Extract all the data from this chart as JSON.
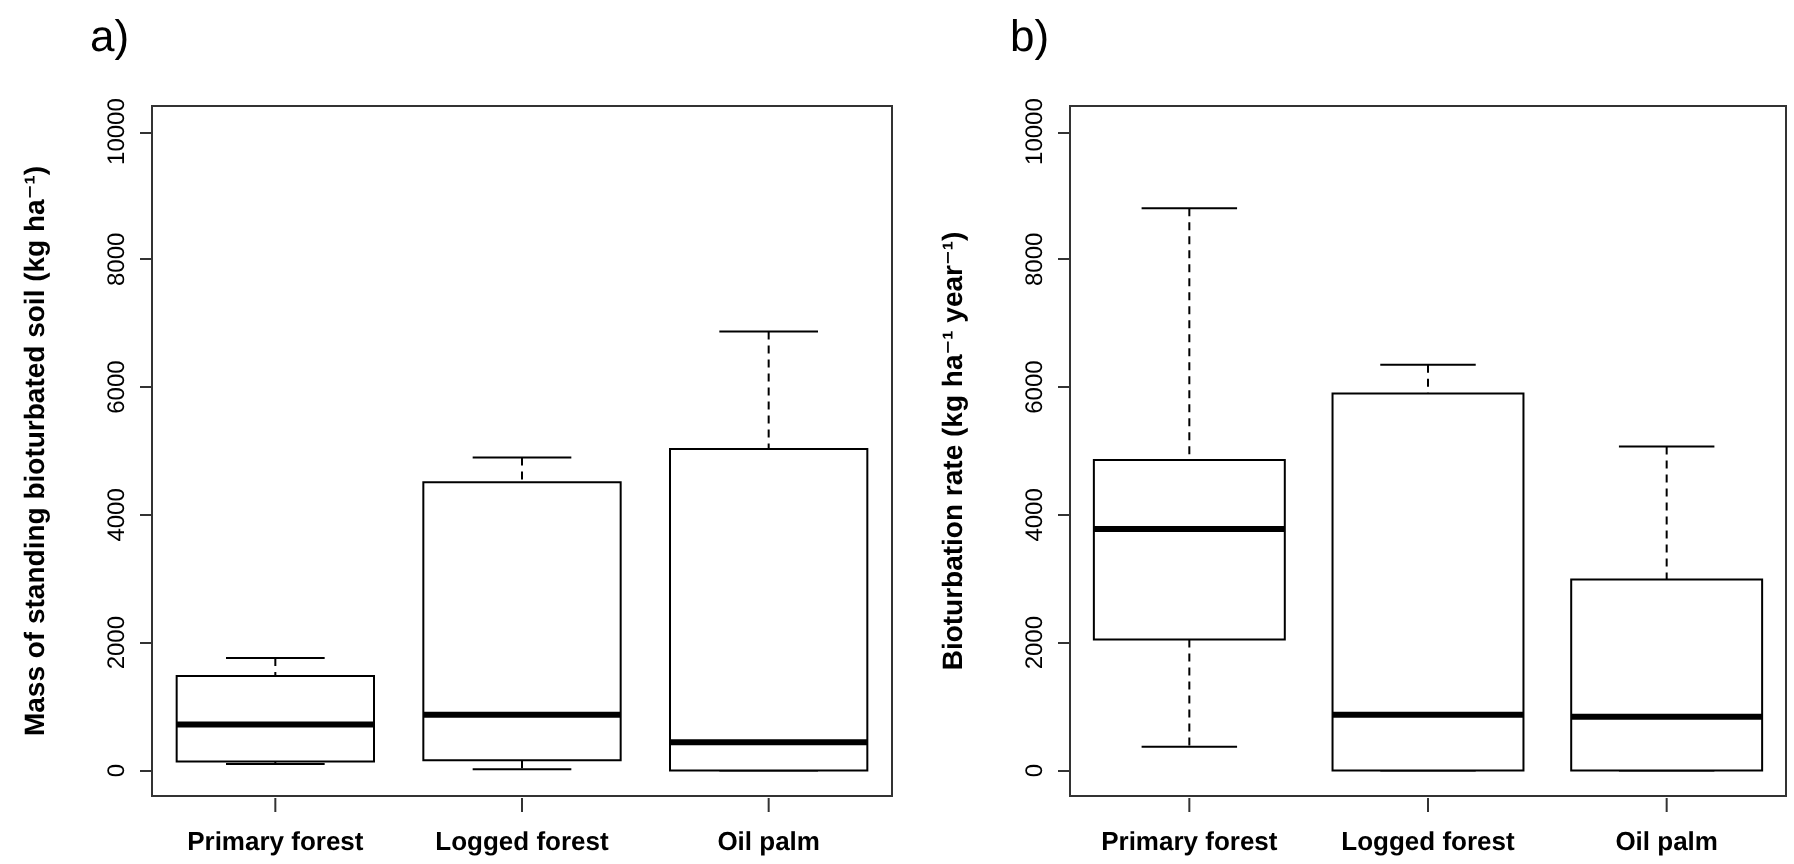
{
  "chart_data": [
    {
      "type": "box",
      "title": "a)",
      "ylabel": "Mass of standing bioturbated soil (kg ha⁻¹)",
      "categories": [
        "Primary forest",
        "Logged forest",
        "Oil palm"
      ],
      "boxes": [
        {
          "low": 100,
          "q1": 140,
          "median": 720,
          "q3": 1480,
          "high": 1760
        },
        {
          "low": 20,
          "q1": 160,
          "median": 870,
          "q3": 4510,
          "high": 4900
        },
        {
          "low": 0,
          "q1": 0,
          "median": 440,
          "q3": 5030,
          "high": 6870
        }
      ],
      "color": "#000000",
      "ylim": [
        -400,
        10400
      ],
      "yticks": [
        0,
        2000,
        4000,
        6000,
        8000,
        10000
      ],
      "grid": false
    },
    {
      "type": "box",
      "title": "b)",
      "ylabel": "Bioturbation rate (kg ha⁻¹ year⁻¹)",
      "categories": [
        "Primary forest",
        "Logged forest",
        "Oil palm"
      ],
      "boxes": [
        {
          "low": 370,
          "q1": 2050,
          "median": 3780,
          "q3": 4860,
          "high": 8800
        },
        {
          "low": 0,
          "q1": 0,
          "median": 870,
          "q3": 5900,
          "high": 6350
        },
        {
          "low": 0,
          "q1": 0,
          "median": 840,
          "q3": 2990,
          "high": 5070
        }
      ],
      "color": "#000000",
      "ylim": [
        -400,
        10400
      ],
      "yticks": [
        0,
        2000,
        4000,
        6000,
        8000,
        10000
      ],
      "grid": false
    }
  ]
}
